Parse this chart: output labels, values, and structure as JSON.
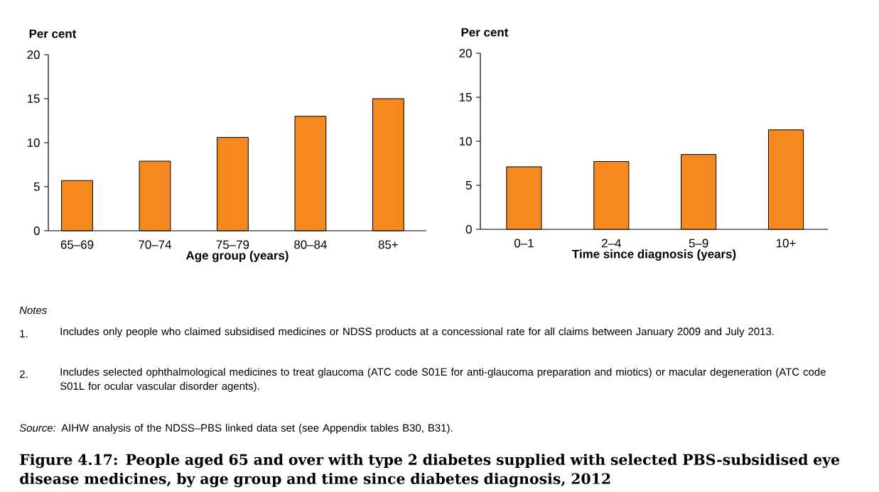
{
  "chart_data": [
    {
      "type": "bar",
      "title": "Figure 4.17: People aged 65 and over with type 2 diabetes supplied with selected PBS-subsidised eye disease medicines, by age group and time since diabetes diagnosis, 2012",
      "ylabel": "Per cent",
      "xlabel": "Age group (years)",
      "categories": [
        "65–69",
        "70–74",
        "75–79",
        "80–84",
        "85+"
      ],
      "values": [
        5.7,
        7.9,
        10.6,
        13.0,
        15.0
      ],
      "color": "#f5891f",
      "ylim": [
        0,
        20
      ],
      "yticks": [
        0,
        5,
        10,
        15,
        20
      ],
      "annotations": [
        "Notes",
        "1.",
        "Includes only people who claimed subsidised medicines or NDSS products at a concessional rate for all claims between January 2009 and July 2013.",
        "2.",
        "Includes selected ophthalmological medicines to treat glaucoma (ATC code S01E for anti-glaucoma preparation and miotics) or macular degeneration (ATC code S01L for ocular vascular disorder agents).",
        "*Source:* AIHW analysis of the NDSS–PBS linked data set (see Appendix tables B30, B31)."
      ]
    },
    {
      "type": "bar",
      "ylabel": "Per cent",
      "xlabel": "Time since diagnosis (years)",
      "categories": [
        "0–1",
        "2–4",
        "5–9",
        "10+"
      ],
      "values": [
        7.1,
        7.7,
        8.5,
        11.3
      ],
      "color": "#f5891f",
      "ylim": [
        0,
        20
      ],
      "yticks": [
        0,
        5,
        10,
        15,
        20
      ]
    }
  ]
}
